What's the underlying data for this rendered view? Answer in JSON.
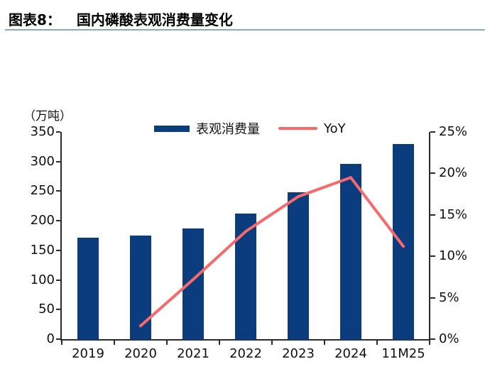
{
  "figure": {
    "label": "图表8：",
    "title": "国内磷酸表观消费量变化"
  },
  "chart_data": {
    "type": "bar+line combo",
    "unit_label": "（万吨）",
    "categories": [
      "2019",
      "2020",
      "2021",
      "2022",
      "2023",
      "2024",
      "11M25"
    ],
    "series": [
      {
        "name": "表观消费量",
        "type": "bar",
        "axis": "left",
        "color": "#0b3c7d",
        "values": [
          172,
          175,
          187,
          212,
          248,
          296,
          330
        ]
      },
      {
        "name": "YoY",
        "type": "line",
        "axis": "right",
        "color": "#f8696b",
        "values": [
          null,
          1.6,
          7.2,
          13.0,
          17.2,
          19.5,
          11.2
        ]
      }
    ],
    "left_axis": {
      "min": 0,
      "max": 350,
      "step": 50,
      "tick_labels": [
        "0",
        "50",
        "100",
        "150",
        "200",
        "250",
        "300",
        "350"
      ]
    },
    "right_axis": {
      "min": 0,
      "max": 25,
      "step": 5,
      "tick_labels": [
        "0%",
        "5%",
        "10%",
        "15%",
        "20%",
        "25%"
      ]
    },
    "grid": false,
    "legend_position": "top-center"
  }
}
